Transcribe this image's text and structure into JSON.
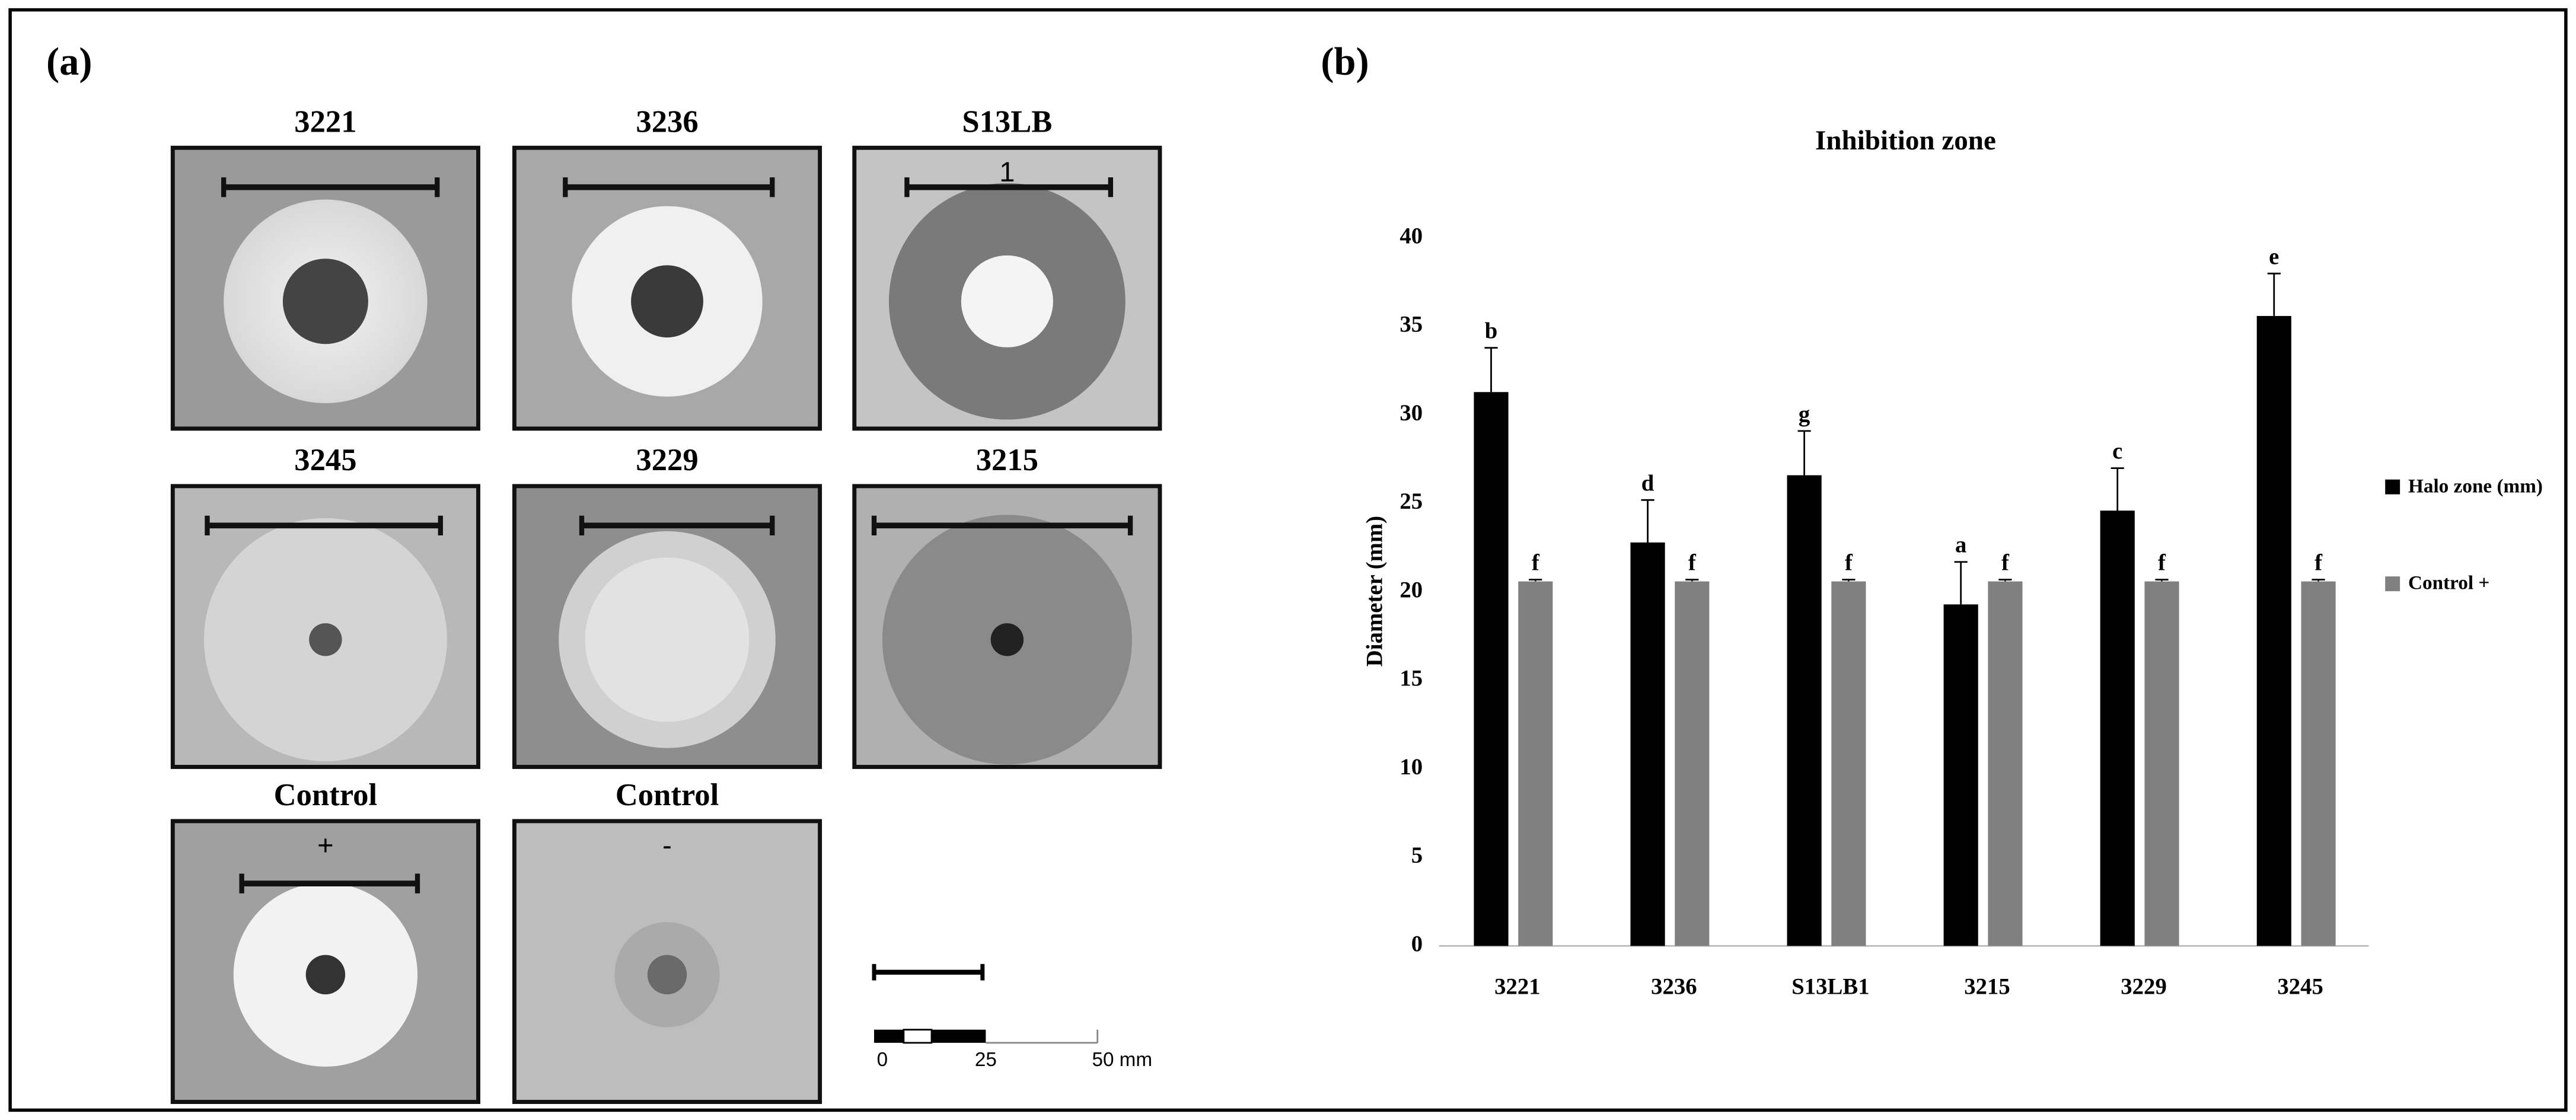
{
  "panel_a": {
    "label": "(a)",
    "plates": [
      {
        "title": "3221"
      },
      {
        "title": "3236"
      },
      {
        "title": "S13LB",
        "mark": "1"
      },
      {
        "title": "3245"
      },
      {
        "title": "3229"
      },
      {
        "title": "3215"
      },
      {
        "title": "Control",
        "mark": "+"
      },
      {
        "title": "Control",
        "mark": "-"
      }
    ],
    "scale_bar": {
      "labels": [
        "0",
        "25",
        "50 mm"
      ]
    }
  },
  "chart_data": {
    "type": "bar",
    "label": "(b)",
    "title": "Inhibition zone",
    "y_label": "Diameter (mm)",
    "categories": [
      "3221",
      "3236",
      "S13LB1",
      "3215",
      "3229",
      "3245"
    ],
    "series": [
      {
        "name": "Halo zone (mm)",
        "color": "#000000",
        "values": [
          31.3,
          22.8,
          26.6,
          19.3,
          24.6,
          35.6
        ],
        "errors": [
          2.5,
          2.4,
          2.5,
          2.4,
          2.4,
          2.4
        ],
        "annotations": [
          "b",
          "d",
          "g",
          "a",
          "c",
          "e"
        ]
      },
      {
        "name": "Control +",
        "color": "#808080",
        "values": [
          20.6,
          20.6,
          20.6,
          20.6,
          20.6,
          20.6
        ],
        "errors": [
          0.1,
          0.1,
          0.1,
          0.1,
          0.1,
          0.1
        ],
        "annotations": [
          "f",
          "f",
          "f",
          "f",
          "f",
          "f"
        ]
      }
    ],
    "ylim": [
      0,
      40
    ],
    "yticks": [
      0,
      5,
      10,
      15,
      20,
      25,
      30,
      35,
      40
    ],
    "legend": "right"
  }
}
